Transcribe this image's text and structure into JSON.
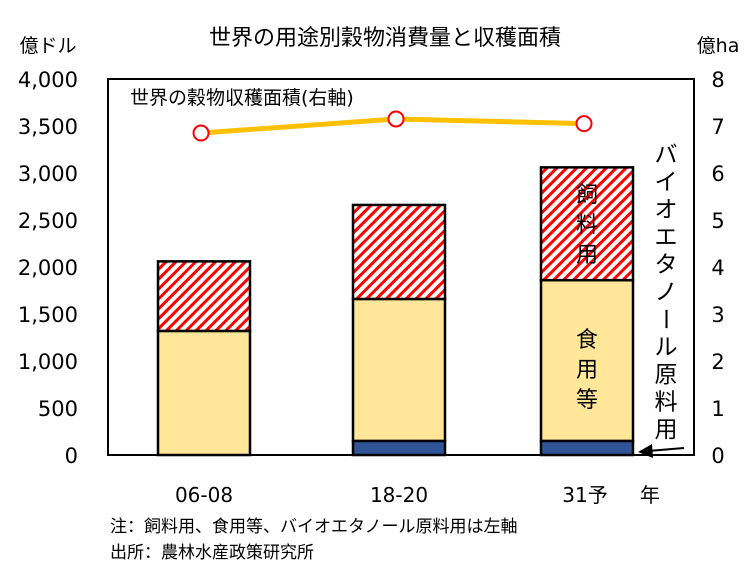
{
  "chart_data": {
    "type": "bar",
    "title": "世界の用途別穀物消費量と収穫面積",
    "ylabel": "億ドル",
    "y2label": "億ha",
    "xlabel": "年",
    "ylim": [
      0,
      4000
    ],
    "y2lim": [
      0,
      8
    ],
    "yticks": [
      "0",
      "500",
      "1,000",
      "1,500",
      "2,000",
      "2,500",
      "3,000",
      "3,500",
      "4,000"
    ],
    "y2ticks": [
      "0",
      "1",
      "2",
      "3",
      "4",
      "5",
      "6",
      "7",
      "8"
    ],
    "categories": [
      "06-08",
      "18-20",
      "31予"
    ],
    "stacked": true,
    "series": [
      {
        "name": "バイオエタノール原料用",
        "values": [
          0,
          150,
          150
        ],
        "color": "#2f5597"
      },
      {
        "name": "食用等",
        "values": [
          1320,
          1510,
          1710
        ],
        "color": "#ffe699"
      },
      {
        "name": "飼料用",
        "values": [
          740,
          1000,
          1200
        ],
        "color": "#ff0000",
        "pattern": "hatch"
      }
    ],
    "line_series": {
      "name": "世界の穀物収穫面積(右軸)",
      "axis": "right",
      "values": [
        6.85,
        7.15,
        7.05
      ],
      "color": "#ffc000",
      "marker_color": "#ff0000"
    },
    "annotations": {
      "feed": "飼料用",
      "food": "食用等",
      "bio": "バイオエタノール原料用"
    },
    "notes": [
      "注：飼料用、食用等、バイオエタノール原料用は左軸",
      "出所：農林水産政策研究所"
    ]
  }
}
